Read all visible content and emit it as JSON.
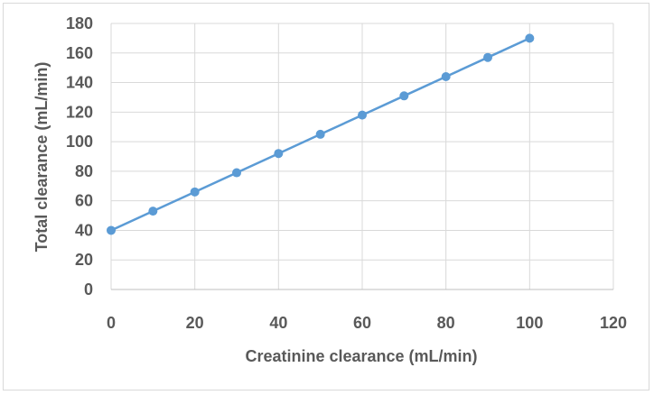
{
  "chart_data": {
    "type": "line",
    "title": "",
    "xlabel": "Creatinine clearance (mL/min)",
    "ylabel": "Total clearance (mL/min)",
    "xlim": [
      0,
      120
    ],
    "ylim": [
      0,
      180
    ],
    "x_ticks": [
      0,
      20,
      40,
      60,
      80,
      100,
      120
    ],
    "y_ticks": [
      0,
      20,
      40,
      60,
      80,
      100,
      120,
      140,
      160,
      180
    ],
    "grid": true,
    "legend": "none",
    "line_color": "#5b9bd5",
    "series": [
      {
        "x": [
          0,
          10,
          20,
          30,
          40,
          50,
          60,
          70,
          80,
          90,
          100
        ],
        "values": [
          40,
          53,
          66,
          79,
          92,
          105,
          118,
          131,
          144,
          157,
          170
        ]
      }
    ]
  }
}
